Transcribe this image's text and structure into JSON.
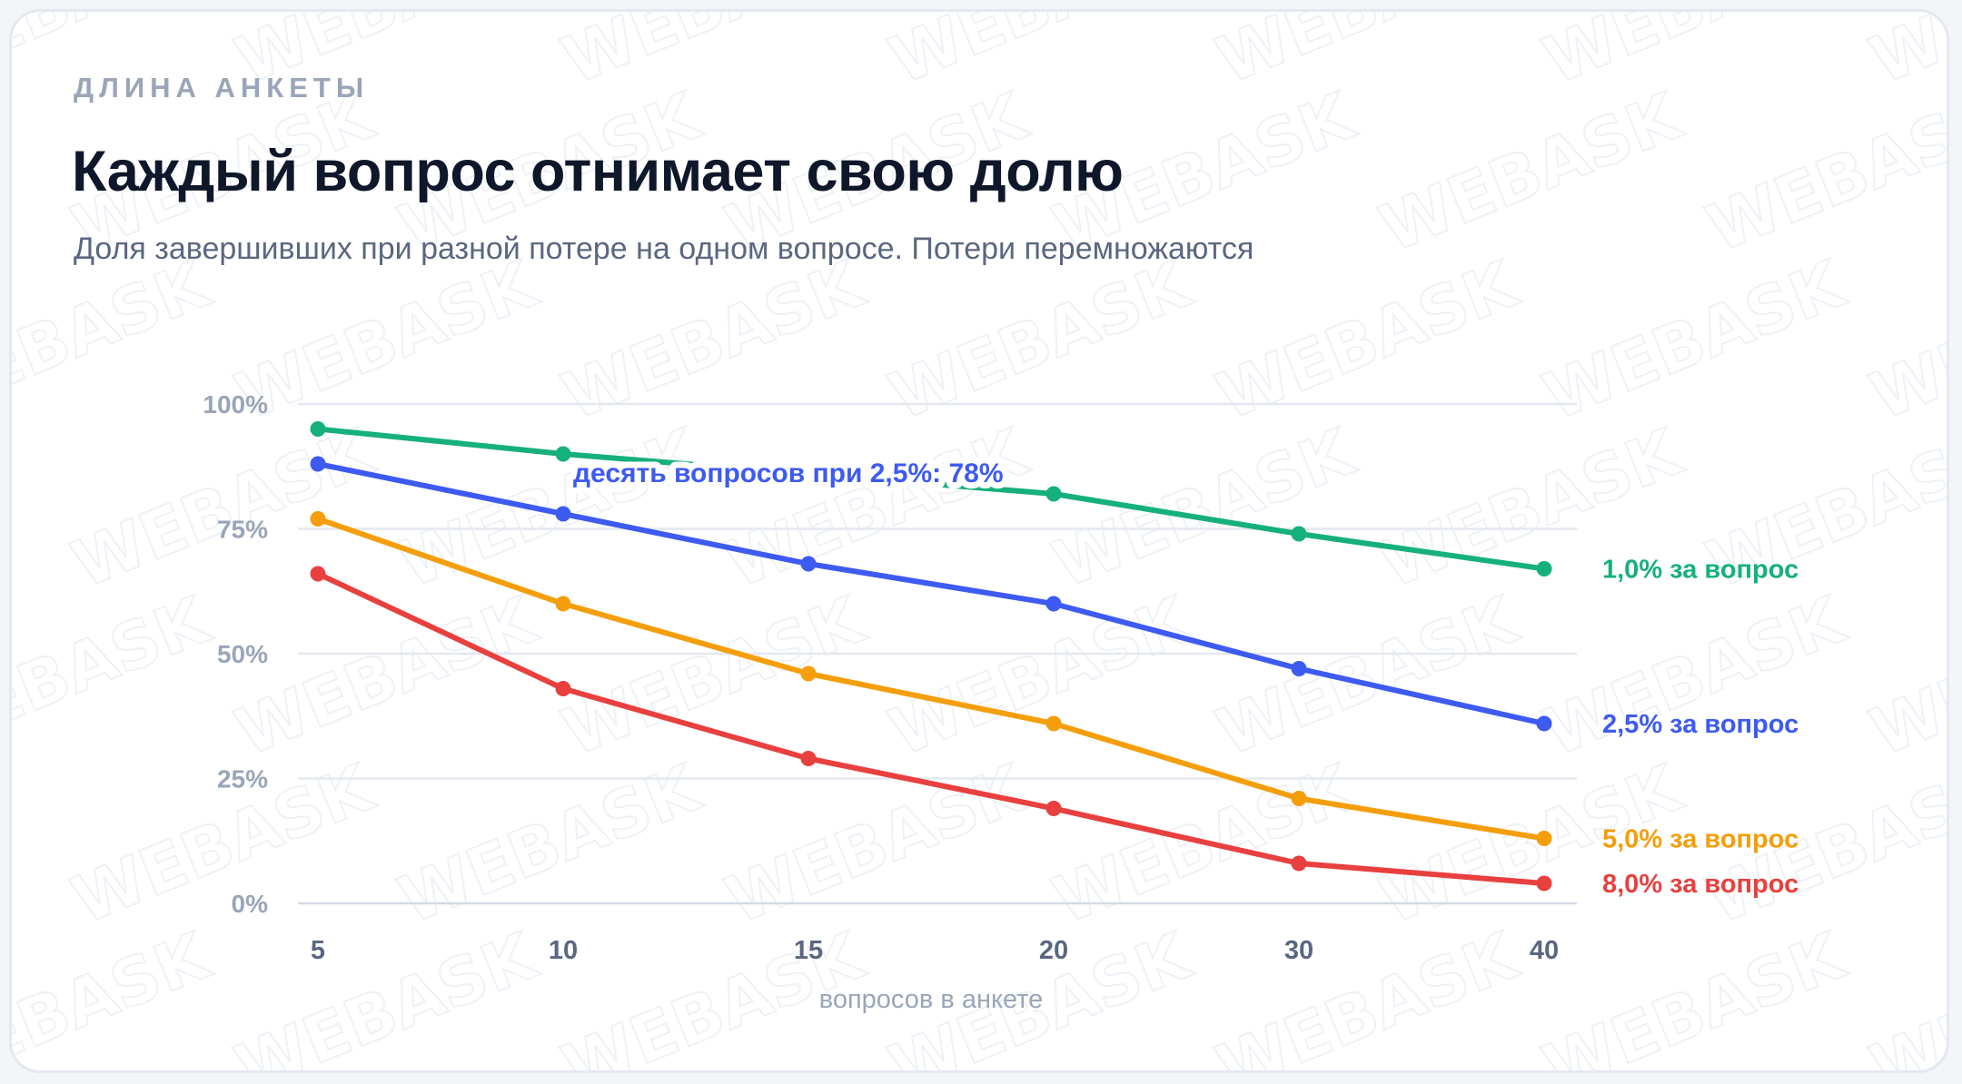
{
  "header": {
    "overline": "ДЛИНА АНКЕТЫ",
    "title": "Каждый вопрос отнимает свою долю",
    "subtitle": "Доля завершивших при разной потере на одном вопросе. Потери перемножаются"
  },
  "watermark_text": "WEBASK",
  "chart_data": {
    "type": "line",
    "categories": [
      "5",
      "10",
      "15",
      "20",
      "30",
      "40"
    ],
    "xlabel": "вопросов в анкете",
    "ylabel": "",
    "ylim": [
      0,
      100
    ],
    "yticks": [
      "0%",
      "25%",
      "50%",
      "75%",
      "100%"
    ],
    "grid": true,
    "legend": "inline-right",
    "series": [
      {
        "name": "1,0% за вопрос",
        "color": "#16b07c",
        "values": [
          95,
          90,
          86,
          82,
          74,
          67
        ]
      },
      {
        "name": "2,5% за вопрос",
        "color": "#3d5af1",
        "values": [
          88,
          78,
          68,
          60,
          47,
          36
        ]
      },
      {
        "name": "5,0% за вопрос",
        "color": "#f59e0b",
        "values": [
          77,
          60,
          46,
          36,
          21,
          13
        ]
      },
      {
        "name": "8,0% за вопрос",
        "color": "#e8403f",
        "values": [
          66,
          43,
          29,
          19,
          8,
          4
        ]
      }
    ],
    "annotation": {
      "text": "десять вопросов при 2,5%: 78%",
      "color": "#3d5af1",
      "series": 1,
      "category": "10"
    }
  }
}
